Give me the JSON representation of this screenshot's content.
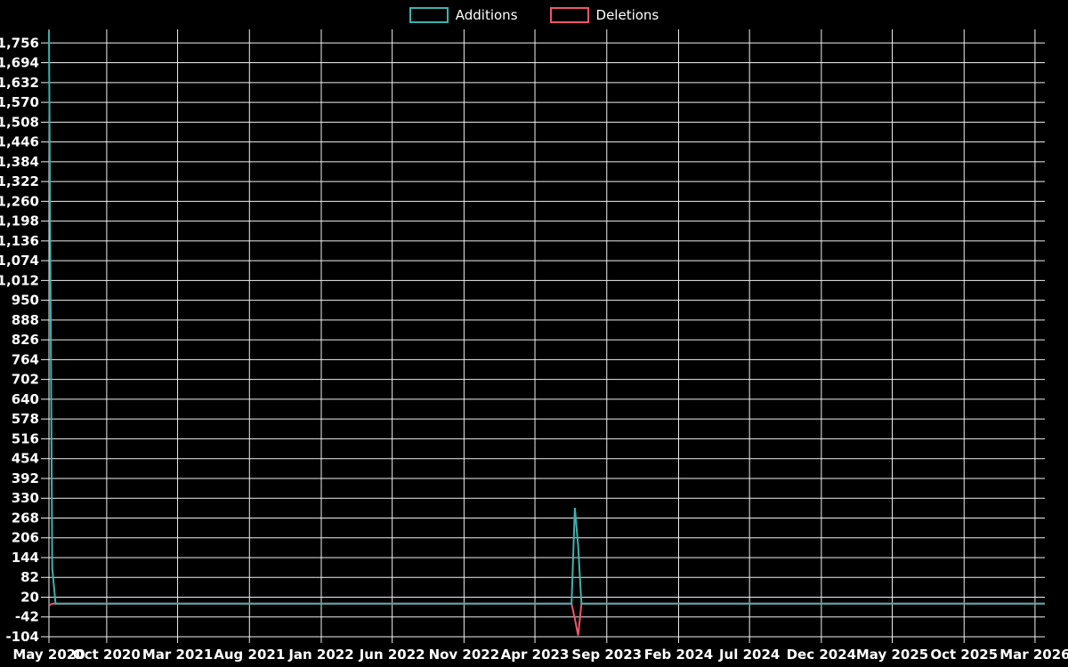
{
  "page": {
    "background": "#000000",
    "text_color": "#ffffff",
    "grid_color": "#f0f0f0"
  },
  "legend": {
    "items": [
      {
        "label": "Additions",
        "color": "#3db2ae"
      },
      {
        "label": "Deletions",
        "color": "#f0556c"
      }
    ]
  },
  "chart_data": {
    "type": "line",
    "title": "",
    "xlabel": "",
    "ylabel": "",
    "grid": true,
    "legend_position": "top-center",
    "x_domain": [
      "2020-05-31",
      "2026-03-22"
    ],
    "ylim": [
      -104,
      1756
    ],
    "y_axis": {
      "min": -104,
      "step": 62,
      "labels": [
        "-104",
        "-42",
        "20",
        "82",
        "144",
        "206",
        "268",
        "330",
        "392",
        "454",
        "516",
        "578",
        "640",
        "702",
        "764",
        "826",
        "888",
        "950",
        "1,012",
        "1,074",
        "1,136",
        "1,198",
        "1,260",
        "1,322",
        "1,384",
        "1,446",
        "1,508",
        "1,570",
        "1,632",
        "1,694",
        "1,756"
      ]
    },
    "x_ticks": [
      {
        "label": "May 2020",
        "date": "2020-05-31"
      },
      {
        "label": "Oct 2020",
        "date": "2020-10-01"
      },
      {
        "label": "Mar 2021",
        "date": "2021-03-01"
      },
      {
        "label": "Aug 2021",
        "date": "2021-08-01"
      },
      {
        "label": "Jan 2022",
        "date": "2022-01-01"
      },
      {
        "label": "Jun 2022",
        "date": "2022-06-01"
      },
      {
        "label": "Nov 2022",
        "date": "2022-11-01"
      },
      {
        "label": "Apr 2023",
        "date": "2023-04-01"
      },
      {
        "label": "Sep 2023",
        "date": "2023-09-01"
      },
      {
        "label": "Feb 2024",
        "date": "2024-02-01"
      },
      {
        "label": "Jul 2024",
        "date": "2024-07-01"
      },
      {
        "label": "Dec 2024",
        "date": "2024-12-01"
      },
      {
        "label": "May 2025",
        "date": "2025-05-01"
      },
      {
        "label": "Oct 2025",
        "date": "2025-10-01"
      },
      {
        "label": "Mar 2026",
        "date": "2026-03-01"
      }
    ],
    "series": [
      {
        "name": "Additions",
        "color": "#3db2ae",
        "baseline": 0,
        "points": [
          {
            "date": "2020-05-31",
            "value": 1794
          },
          {
            "date": "2020-06-07",
            "value": 112
          },
          {
            "date": "2020-06-14",
            "value": 0
          },
          {
            "date": "2023-06-18",
            "value": 0
          },
          {
            "date": "2023-06-25",
            "value": 300
          },
          {
            "date": "2023-07-02",
            "value": 180
          },
          {
            "date": "2023-07-09",
            "value": 0
          }
        ]
      },
      {
        "name": "Deletions",
        "color": "#f0556c",
        "baseline": 0,
        "points": [
          {
            "date": "2020-05-31",
            "value": -6
          },
          {
            "date": "2020-06-07",
            "value": 0
          },
          {
            "date": "2023-06-18",
            "value": 0
          },
          {
            "date": "2023-06-25",
            "value": -48
          },
          {
            "date": "2023-07-02",
            "value": -100
          },
          {
            "date": "2023-07-09",
            "value": 0
          }
        ]
      }
    ]
  }
}
